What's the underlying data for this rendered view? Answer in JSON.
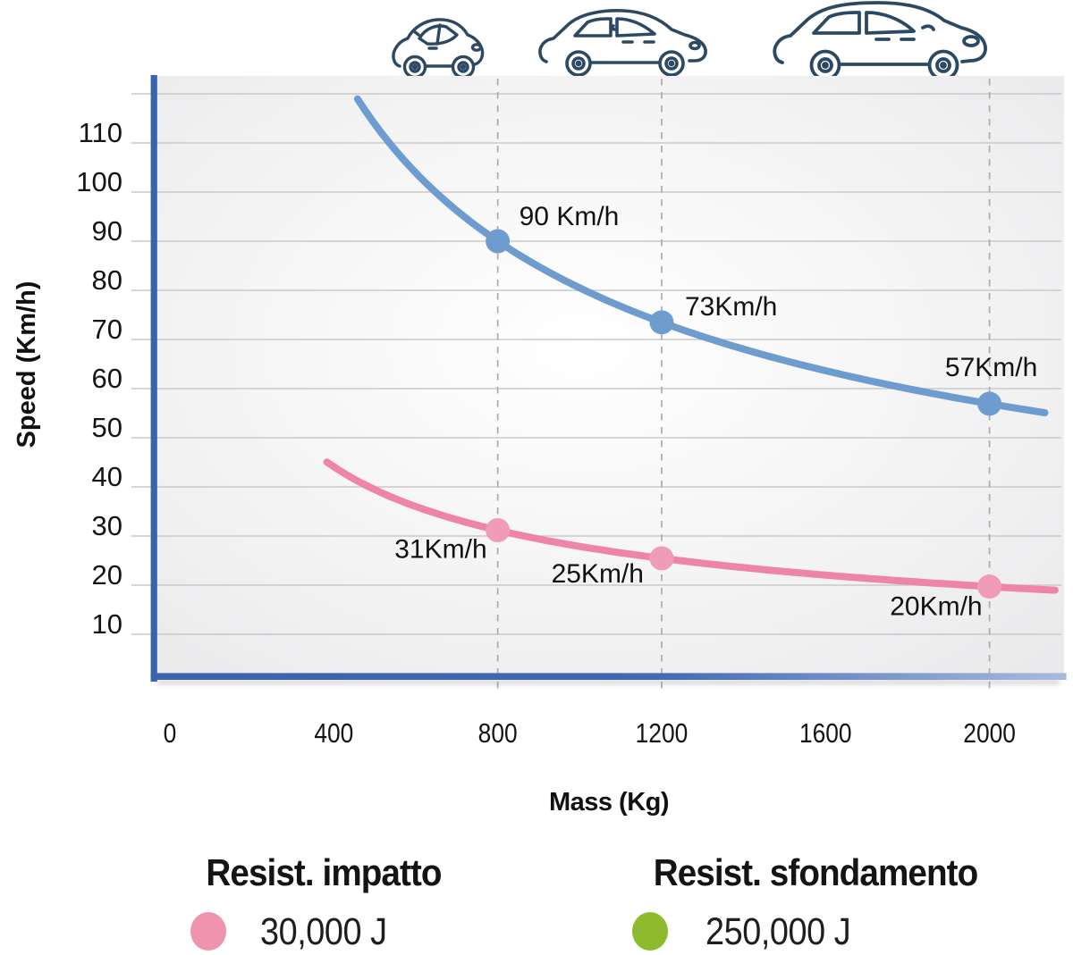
{
  "icons": [
    "city-car-icon",
    "hatchback-car-icon",
    "suv-car-icon"
  ],
  "chart_data": {
    "type": "line",
    "title": "",
    "xlabel": "Mass (Kg)",
    "ylabel": "Speed (Km/h)",
    "x_ticks": [
      0,
      400,
      800,
      1200,
      1600,
      2000
    ],
    "y_ticks": [
      110,
      100,
      90,
      80,
      70,
      60,
      50,
      40,
      30,
      20,
      10
    ],
    "xlim": [
      0,
      2180
    ],
    "ylim": [
      0,
      122
    ],
    "grid": {
      "horizontal_step": 10,
      "horizontal_max": 120,
      "dashed_vertical_masses": [
        800,
        1200,
        2000
      ]
    },
    "legend_position": "bottom",
    "series": [
      {
        "name": "Resist. sfondamento",
        "energy_joules": 250000,
        "color": "#6f9ccf",
        "point_color": "#6f9ccf",
        "mass_range": [
          458,
          2135
        ],
        "points": [
          {
            "mass": 800,
            "speed_kmh": 90,
            "label": "90 Km/h",
            "label_dx": 24,
            "label_dy": -18,
            "label_anchor": "start"
          },
          {
            "mass": 1200,
            "speed_kmh": 73,
            "label": "73Km/h",
            "label_dx": 26,
            "label_dy": -8,
            "label_anchor": "start"
          },
          {
            "mass": 2000,
            "speed_kmh": 57,
            "label": "57Km/h",
            "label_dx": 2,
            "label_dy": -31,
            "label_anchor": "middle"
          }
        ]
      },
      {
        "name": "Resist. impatto",
        "energy_joules": 30000,
        "color": "#ee85a8",
        "point_color": "#f19cb7",
        "mass_range": [
          383,
          2160
        ],
        "points": [
          {
            "mass": 800,
            "speed_kmh": 31,
            "label": "31Km/h",
            "label_dx": -12,
            "label_dy": 31,
            "label_anchor": "end"
          },
          {
            "mass": 1200,
            "speed_kmh": 25,
            "label": "25Km/h",
            "label_dx": -20,
            "label_dy": 27,
            "label_anchor": "end"
          },
          {
            "mass": 2000,
            "speed_kmh": 20,
            "label": "20Km/h",
            "label_dx": -8,
            "label_dy": 32,
            "label_anchor": "end"
          }
        ]
      }
    ],
    "colors": {
      "axis": "#3a63ae",
      "axis_fade": "#a9bade",
      "grid": "#c9c9ca",
      "dashed": "#ababab",
      "car_outline": "#2c4963",
      "plot_bg_center": "#ffffff",
      "plot_bg_edge": "#e8e8ea"
    }
  },
  "legend": {
    "items": [
      {
        "title": "Resist. impatto",
        "value": "30,000 J",
        "color": "#ef93ae"
      },
      {
        "title": "Resist. sfondamento",
        "value": "250,000 J",
        "color": "#8eba2e"
      }
    ]
  }
}
